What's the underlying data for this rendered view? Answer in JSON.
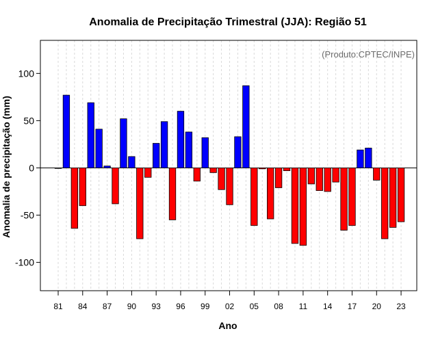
{
  "chart_data": {
    "type": "bar",
    "title": "Anomalia de Precipitação Trimestral (JJA): Região 51",
    "xlabel": "Ano",
    "ylabel": "Anomalia de precipitação (mm)",
    "annotation": "(Produto:CPTEC/INPE)",
    "ylim": [
      -130,
      135
    ],
    "yticks": [
      -100,
      -50,
      0,
      50,
      100
    ],
    "x_tick_labels": [
      "81",
      "84",
      "87",
      "90",
      "93",
      "96",
      "99",
      "02",
      "05",
      "08",
      "11",
      "14",
      "17",
      "20",
      "23"
    ],
    "x_tick_years": [
      1981,
      1984,
      1987,
      1990,
      1993,
      1996,
      1999,
      2002,
      2005,
      2008,
      2011,
      2014,
      2017,
      2020,
      2023
    ],
    "positive_color": "#0000ff",
    "negative_color": "#ff0000",
    "grid": true,
    "years": [
      1981,
      1982,
      1983,
      1984,
      1985,
      1986,
      1987,
      1988,
      1989,
      1990,
      1991,
      1992,
      1993,
      1994,
      1995,
      1996,
      1997,
      1998,
      1999,
      2000,
      2001,
      2002,
      2003,
      2004,
      2005,
      2006,
      2007,
      2008,
      2009,
      2010,
      2011,
      2012,
      2013,
      2014,
      2015,
      2016,
      2017,
      2018,
      2019,
      2020,
      2021,
      2022,
      2023
    ],
    "values": [
      0,
      77,
      -64,
      -40,
      69,
      41,
      2,
      -38,
      52,
      12,
      -75,
      -10,
      26,
      49,
      -55,
      60,
      38,
      -14,
      32,
      -5,
      -23,
      -39,
      33,
      87,
      -61,
      -1,
      -54,
      -21,
      -3,
      -80,
      -82,
      -17,
      -24,
      -25,
      -15,
      -66,
      -61,
      19,
      21,
      -13,
      -75,
      -63,
      -57
    ]
  }
}
